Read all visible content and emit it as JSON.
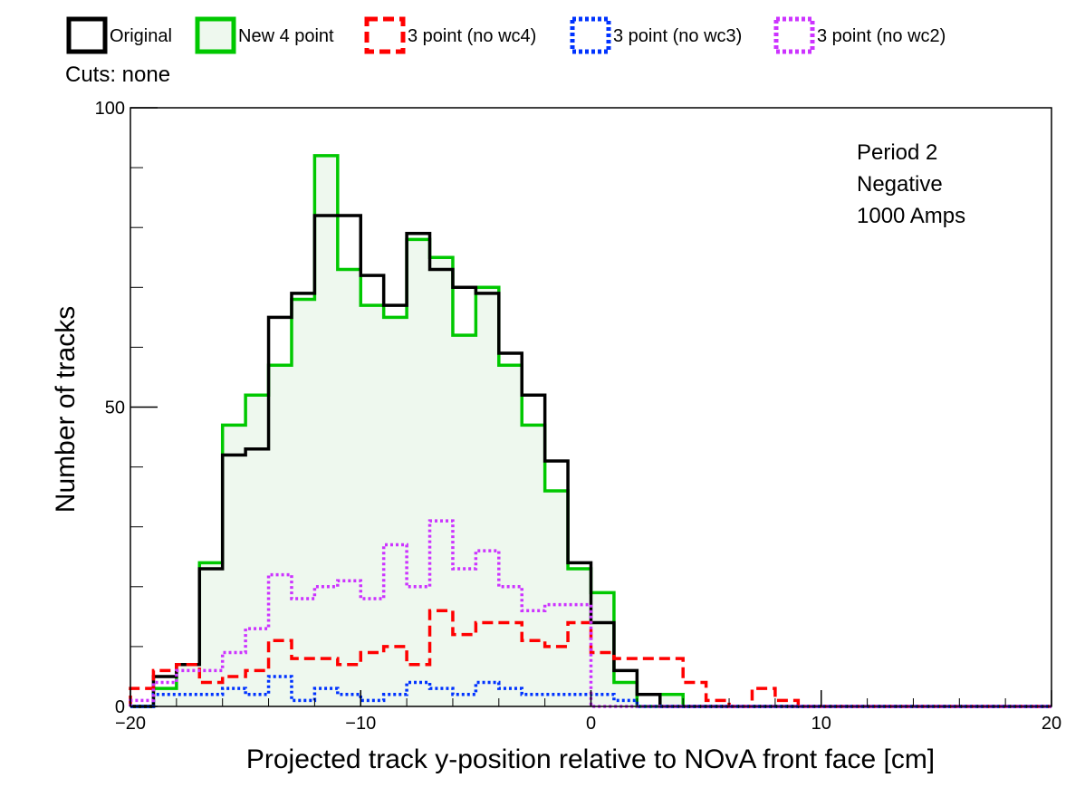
{
  "chart_data": {
    "type": "step-histogram",
    "xlabel": "Projected track y-position relative to NOvA front face [cm]",
    "ylabel": "Number of tracks",
    "xlim": [
      -20,
      20
    ],
    "ylim": [
      0,
      100
    ],
    "x_ticks": [
      -20,
      -10,
      0,
      10,
      20
    ],
    "x_tick_labels": [
      "−20",
      "−10",
      "0",
      "10",
      "20"
    ],
    "y_ticks": [
      0,
      50,
      100
    ],
    "y_tick_labels": [
      "0",
      "50",
      "100"
    ],
    "bin_width": 1,
    "x_edges_start": -20,
    "legend_position": "top",
    "cuts_label": "Cuts: none",
    "annotation": [
      "Period 2",
      "Negative",
      "1000 Amps"
    ],
    "series": [
      {
        "name": "Original",
        "color": "#000000",
        "dash": "solid",
        "fill": "none",
        "values": [
          0,
          5,
          7,
          23,
          42,
          43,
          65,
          69,
          82,
          82,
          72,
          67,
          79,
          73,
          70,
          69,
          59,
          52,
          41,
          24,
          14,
          6,
          2,
          0,
          0,
          0,
          0,
          0,
          0,
          0,
          0,
          0,
          0,
          0,
          0,
          0,
          0,
          0,
          0,
          0
        ]
      },
      {
        "name": "New 4 point",
        "color": "#00c800",
        "dash": "solid",
        "fill": "#eef8ee",
        "values": [
          0,
          3,
          7,
          24,
          47,
          52,
          57,
          68,
          92,
          73,
          67,
          65,
          78,
          75,
          62,
          70,
          57,
          47,
          36,
          23,
          19,
          4,
          0,
          2,
          0,
          0,
          0,
          0,
          0,
          0,
          0,
          0,
          0,
          0,
          0,
          0,
          0,
          0,
          0,
          0
        ]
      },
      {
        "name": "3 point (no wc4)",
        "color": "#ff0000",
        "dash": "dash",
        "fill": "none",
        "values": [
          3,
          6,
          7,
          4,
          5,
          6,
          11,
          8,
          8,
          7,
          9,
          10,
          7,
          16,
          12,
          14,
          14,
          11,
          10,
          14,
          9,
          8,
          8,
          8,
          4,
          1,
          0,
          3,
          1,
          0,
          0,
          0,
          0,
          0,
          0,
          0,
          0,
          0,
          0,
          0
        ]
      },
      {
        "name": "3 point (no wc3)",
        "color": "#0033ff",
        "dash": "dot",
        "fill": "none",
        "values": [
          0,
          2,
          2,
          2,
          3,
          2,
          5,
          1,
          3,
          2,
          1,
          2,
          4,
          3,
          2,
          4,
          3,
          2,
          2,
          2,
          2,
          1,
          0,
          0,
          0,
          0,
          0,
          0,
          0,
          0,
          0,
          0,
          0,
          0,
          0,
          0,
          0,
          0,
          0,
          0
        ]
      },
      {
        "name": "3 point (no wc2)",
        "color": "#cc33ff",
        "dash": "dot",
        "fill": "none",
        "values": [
          1,
          4,
          6,
          6,
          9,
          13,
          22,
          18,
          20,
          21,
          18,
          27,
          20,
          31,
          23,
          26,
          20,
          16,
          17,
          17,
          0,
          0,
          0,
          0,
          0,
          0,
          0,
          0,
          0,
          0,
          0,
          0,
          0,
          0,
          0,
          0,
          0,
          0,
          0,
          0
        ]
      }
    ]
  }
}
